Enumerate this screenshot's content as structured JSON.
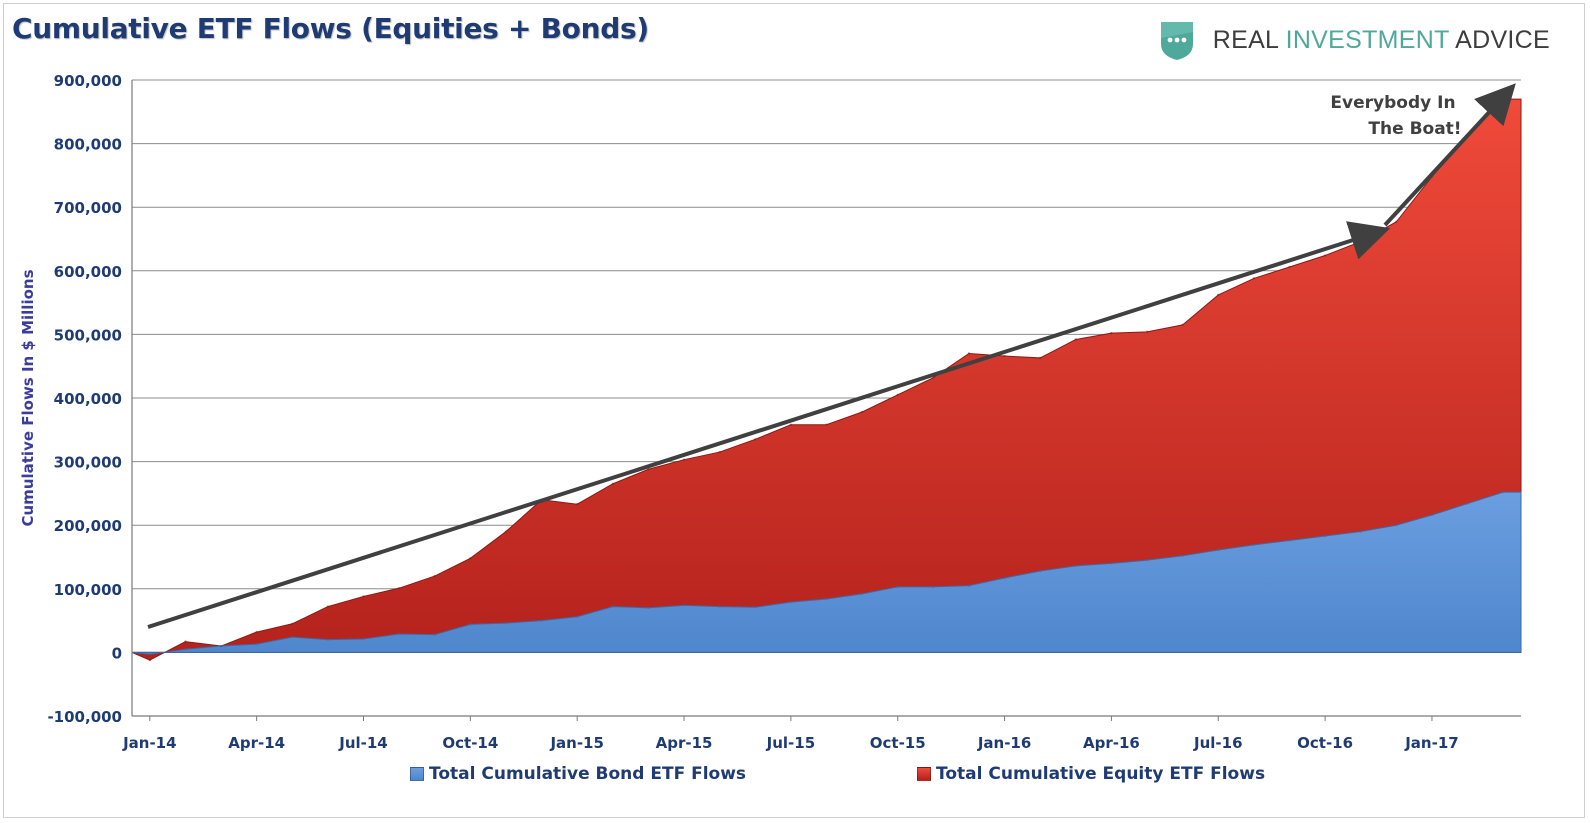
{
  "title": "Cumulative ETF Flows (Equities + Bonds)",
  "logo": {
    "icon": "shield-dots-icon",
    "text_left": "REAL ",
    "text_accent": "INVESTMENT",
    "text_right": " ADVICE",
    "accent_color": "#4fa99b"
  },
  "legend": {
    "bond_label": "Total Cumulative Bond ETF Flows",
    "equity_label": "Total Cumulative Equity ETF Flows"
  },
  "colors": {
    "bond": "#5b8fd4",
    "equity": "#d8352b",
    "axis_text": "#1f3b73",
    "trend_arrow": "#404040"
  },
  "chart_data": {
    "type": "area",
    "title": "Cumulative ETF Flows (Equities + Bonds)",
    "ylabel": "Cumulative Flows In $ Millions",
    "xlabel": "",
    "ylim": [
      -100000,
      900000
    ],
    "yticks": [
      -100000,
      0,
      100000,
      200000,
      300000,
      400000,
      500000,
      600000,
      700000,
      800000,
      900000
    ],
    "ytick_labels": [
      "-100,000",
      "0",
      "100,000",
      "200,000",
      "300,000",
      "400,000",
      "500,000",
      "600,000",
      "700,000",
      "800,000",
      "900,000"
    ],
    "xtick_labels": [
      "Jan-14",
      "Apr-14",
      "Jul-14",
      "Oct-14",
      "Jan-15",
      "Apr-15",
      "Jul-15",
      "Oct-15",
      "Jan-16",
      "Apr-16",
      "Jul-16",
      "Oct-16",
      "Jan-17"
    ],
    "grid": true,
    "legend_position": "bottom",
    "stacked": false,
    "x": [
      "Jan-14",
      "Feb-14",
      "Mar-14",
      "Apr-14",
      "May-14",
      "Jun-14",
      "Jul-14",
      "Aug-14",
      "Sep-14",
      "Oct-14",
      "Nov-14",
      "Dec-14",
      "Jan-15",
      "Feb-15",
      "Mar-15",
      "Apr-15",
      "May-15",
      "Jun-15",
      "Jul-15",
      "Aug-15",
      "Sep-15",
      "Oct-15",
      "Nov-15",
      "Dec-15",
      "Jan-16",
      "Feb-16",
      "Mar-16",
      "Apr-16",
      "May-16",
      "Jun-16",
      "Jul-16",
      "Aug-16",
      "Sep-16",
      "Oct-16",
      "Nov-16",
      "Dec-16",
      "Jan-17",
      "Feb-17",
      "Mar-17"
    ],
    "series": [
      {
        "name": "Total Cumulative Equity ETF Flows",
        "values": [
          -12000,
          17000,
          10000,
          32000,
          45000,
          72000,
          88000,
          101000,
          120000,
          148000,
          190000,
          240000,
          233000,
          265000,
          288000,
          303000,
          315000,
          335000,
          358000,
          358000,
          378000,
          405000,
          432000,
          470000,
          466000,
          463000,
          492000,
          502000,
          504000,
          515000,
          562000,
          588000,
          606000,
          624000,
          646000,
          677000,
          748000,
          812000,
          870000
        ]
      },
      {
        "name": "Total Cumulative Bond ETF Flows",
        "values": [
          -3000,
          5000,
          10000,
          13000,
          24000,
          20000,
          21000,
          29000,
          28000,
          44000,
          46000,
          50000,
          56000,
          72000,
          70000,
          74000,
          72000,
          71000,
          79000,
          84000,
          92000,
          103000,
          103000,
          105000,
          117000,
          128000,
          136000,
          140000,
          145000,
          152000,
          161000,
          169000,
          176000,
          183000,
          190000,
          200000,
          216000,
          234000,
          252000
        ]
      }
    ],
    "annotations": [
      {
        "text_line1": "Everybody In",
        "text_line2": "The Boat!"
      }
    ]
  }
}
